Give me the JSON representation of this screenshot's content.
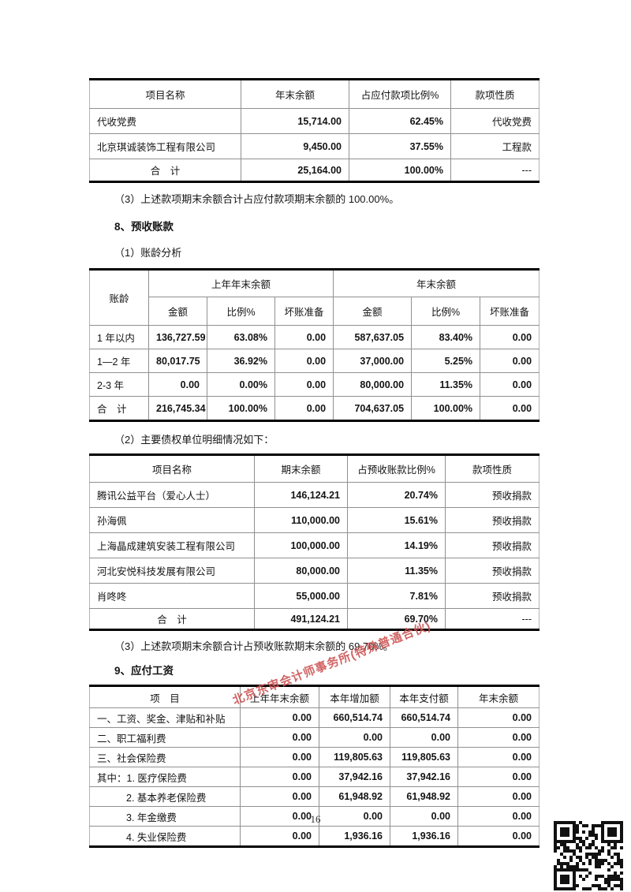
{
  "colors": {
    "accent_stamp_red": "#cb5050",
    "border_black": "#000000",
    "grid_gray": "#909090"
  },
  "watermark": {
    "text": "北京东审会计师事务所(特殊普通合伙)"
  },
  "page": {
    "number": "16"
  },
  "icons": {
    "qr_code": "qr-code"
  },
  "payables_table": {
    "headers": [
      "项目名称",
      "年末余额",
      "占应付款项比例%",
      "款项性质"
    ],
    "rows": [
      [
        "代收党费",
        "15,714.00",
        "62.45%",
        "代收党费"
      ],
      [
        "北京琪诚装饰工程有限公司",
        "9,450.00",
        "37.55%",
        "工程款"
      ],
      [
        "合　计",
        "25,164.00",
        "100.00%",
        "---"
      ]
    ]
  },
  "note_after_payables": "（3）上述款项期末余额合计占应付款项期末余额的 100.00%。",
  "section8": {
    "title": "8、预收账款",
    "sub1": "（1）账龄分析",
    "aging_table": {
      "age_header": "账龄",
      "group_prev": "上年年末余额",
      "group_curr": "年末余额",
      "subheaders": [
        "金额",
        "比例%",
        "坏账准备",
        "金额",
        "比例%",
        "坏账准备"
      ],
      "rows": [
        [
          "1 年以内",
          "136,727.59",
          "63.08%",
          "0.00",
          "587,637.05",
          "83.40%",
          "0.00"
        ],
        [
          "1—2 年",
          "80,017.75",
          "36.92%",
          "0.00",
          "37,000.00",
          "5.25%",
          "0.00"
        ],
        [
          "2-3 年",
          "0.00",
          "0.00%",
          "0.00",
          "80,000.00",
          "11.35%",
          "0.00"
        ],
        [
          "合　计",
          "216,745.34",
          "100.00%",
          "0.00",
          "704,637.05",
          "100.00%",
          "0.00"
        ]
      ]
    },
    "sub2": "（2）主要债权单位明细情况如下：",
    "creditor_table": {
      "headers": [
        "项目名称",
        "期末余额",
        "占预收账款比例%",
        "款项性质"
      ],
      "rows": [
        [
          "腾讯公益平台（爱心人士）",
          "146,124.21",
          "20.74%",
          "预收捐款"
        ],
        [
          "孙海佩",
          "110,000.00",
          "15.61%",
          "预收捐款"
        ],
        [
          "上海晶成建筑安装工程有限公司",
          "100,000.00",
          "14.19%",
          "预收捐款"
        ],
        [
          "河北安悦科技发展有限公司",
          "80,000.00",
          "11.35%",
          "预收捐款"
        ],
        [
          "肖咚咚",
          "55,000.00",
          "7.81%",
          "预收捐款"
        ],
        [
          "合　计",
          "491,124.21",
          "69.70%",
          "---"
        ]
      ]
    },
    "note": "（3）上述款项期末余额合计占预收账款期末余额的 69.70%。"
  },
  "section9": {
    "title": "9、应付工资",
    "wages_table": {
      "headers": [
        "项　目",
        "上年年末余额",
        "本年增加额",
        "本年支付额",
        "年末余额"
      ],
      "rows": [
        [
          "一、工资、奖金、津贴和补贴",
          "0.00",
          "660,514.74",
          "660,514.74",
          "0.00"
        ],
        [
          "二、职工福利费",
          "0.00",
          "0.00",
          "0.00",
          "0.00"
        ],
        [
          "三、社会保险费",
          "0.00",
          "119,805.63",
          "119,805.63",
          "0.00"
        ],
        [
          "其中：1. 医疗保险费",
          "0.00",
          "37,942.16",
          "37,942.16",
          "0.00"
        ],
        [
          "2. 基本养老保险费",
          "0.00",
          "61,948.92",
          "61,948.92",
          "0.00"
        ],
        [
          "3. 年金缴费",
          "0.00",
          "0.00",
          "0.00",
          "0.00"
        ],
        [
          "4. 失业保险费",
          "0.00",
          "1,936.16",
          "1,936.16",
          "0.00"
        ]
      ]
    }
  }
}
